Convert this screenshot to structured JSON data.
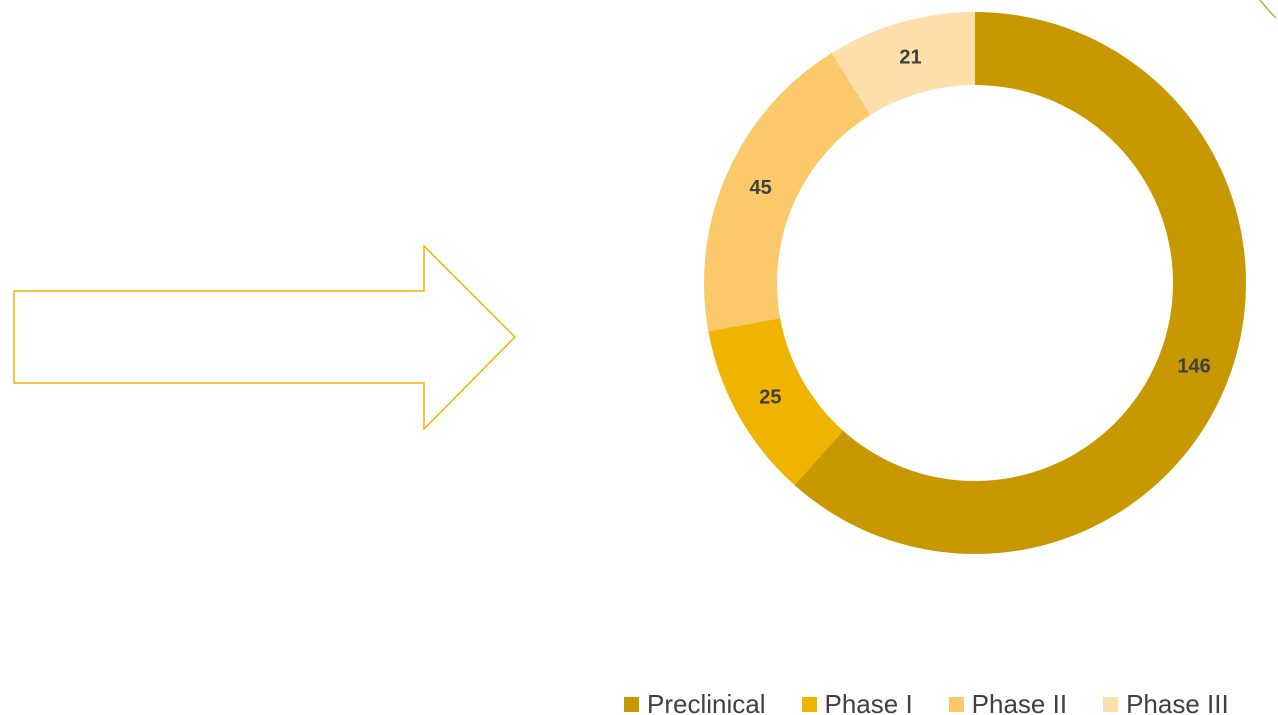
{
  "chart_data": {
    "type": "pie",
    "variant": "donut",
    "categories": [
      "Preclinical",
      "Phase I",
      "Phase II",
      "Phase III"
    ],
    "values": [
      146,
      25,
      45,
      21
    ],
    "colors": [
      "#C89800",
      "#EFB400",
      "#FCC96A",
      "#FDDFAC"
    ],
    "data_labels": [
      "146",
      "25",
      "45",
      "21"
    ],
    "legend": {
      "position": "bottom",
      "entries": [
        "Preclinical",
        "Phase I",
        "Phase II",
        "Phase III"
      ]
    },
    "title": ""
  },
  "decorations": {
    "arrow_outline_color": "#F0B400",
    "arrow_icon": "right-arrow-outline",
    "corner_leaf_color": "#8BC34A"
  }
}
